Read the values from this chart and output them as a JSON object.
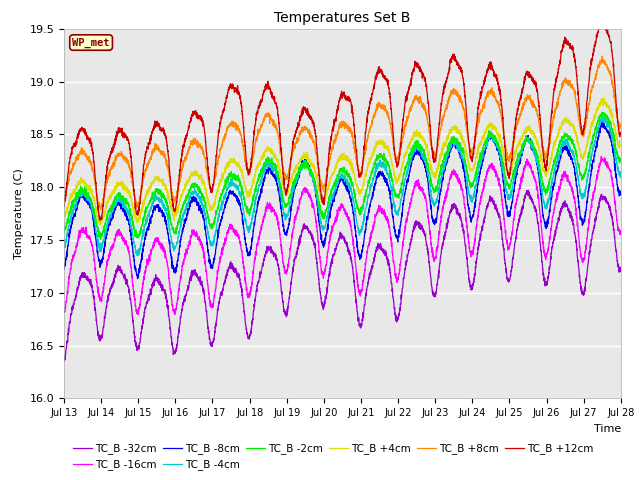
{
  "title": "Temperatures Set B",
  "xlabel": "Time",
  "ylabel": "Temperature (C)",
  "ylim": [
    16.0,
    19.5
  ],
  "xtick_labels": [
    "Jul 13",
    "Jul 14",
    "Jul 15",
    "Jul 16",
    "Jul 17",
    "Jul 18",
    "Jul 19",
    "Jul 20",
    "Jul 21",
    "Jul 22",
    "Jul 23",
    "Jul 24",
    "Jul 25",
    "Jul 26",
    "Jul 27",
    "Jul 28"
  ],
  "yticks": [
    16.0,
    16.5,
    17.0,
    17.5,
    18.0,
    18.5,
    19.0,
    19.5
  ],
  "series": [
    {
      "label": "TC_B -32cm",
      "color": "#9900CC",
      "base": 16.75,
      "amp": 0.3,
      "amp2": 0.08,
      "trend": 0.065,
      "phase": -1.5708
    },
    {
      "label": "TC_B -16cm",
      "color": "#FF00FF",
      "base": 17.15,
      "amp": 0.3,
      "amp2": 0.08,
      "trend": 0.058,
      "phase": -1.5708
    },
    {
      "label": "TC_B -8cm",
      "color": "#0000EE",
      "base": 17.5,
      "amp": 0.28,
      "amp2": 0.07,
      "trend": 0.053,
      "phase": -1.5708
    },
    {
      "label": "TC_B -4cm",
      "color": "#00CCCC",
      "base": 17.62,
      "amp": 0.22,
      "amp2": 0.05,
      "trend": 0.05,
      "phase": -1.5708
    },
    {
      "label": "TC_B -2cm",
      "color": "#00EE00",
      "base": 17.72,
      "amp": 0.18,
      "amp2": 0.04,
      "trend": 0.048,
      "phase": -1.5708
    },
    {
      "label": "TC_B +4cm",
      "color": "#DDDD00",
      "base": 17.85,
      "amp": 0.16,
      "amp2": 0.04,
      "trend": 0.048,
      "phase": -1.5708
    },
    {
      "label": "TC_B +8cm",
      "color": "#FF8800",
      "base": 18.1,
      "amp": 0.22,
      "amp2": 0.06,
      "trend": 0.05,
      "phase": -1.5708
    },
    {
      "label": "TC_B +12cm",
      "color": "#CC0000",
      "base": 18.25,
      "amp": 0.35,
      "amp2": 0.12,
      "trend": 0.052,
      "phase": -1.5708
    }
  ],
  "bg_color": "#E8E8E8",
  "fig_bg": "#FFFFFF",
  "annotation_text": "WP_met",
  "annotation_bg": "#FFFFCC",
  "annotation_border": "#CC0000"
}
